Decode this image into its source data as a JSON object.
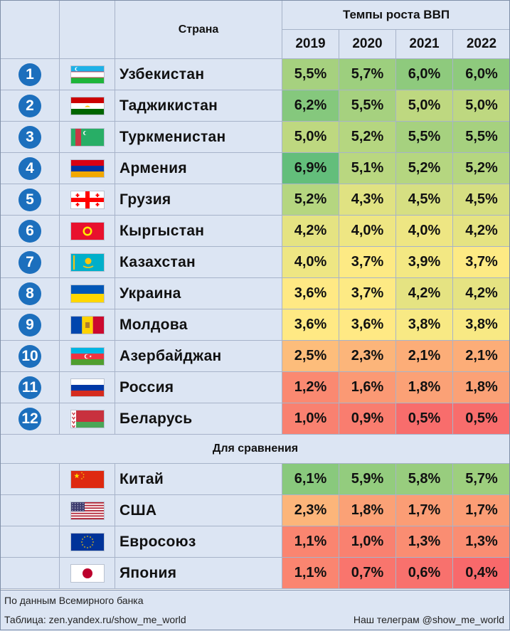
{
  "header": {
    "country_label": "Страна",
    "growth_label": "Темпы роста ВВП",
    "years": [
      "2019",
      "2020",
      "2021",
      "2022"
    ]
  },
  "rows": [
    {
      "rank": "1",
      "country": "Узбекистан",
      "flag": "uzbekistan-flag",
      "values": [
        "5,5%",
        "5,7%",
        "6,0%",
        "6,0%"
      ]
    },
    {
      "rank": "2",
      "country": "Таджикистан",
      "flag": "tajikistan-flag",
      "values": [
        "6,2%",
        "5,5%",
        "5,0%",
        "5,0%"
      ]
    },
    {
      "rank": "3",
      "country": "Туркменистан",
      "flag": "turkmenistan-flag",
      "values": [
        "5,0%",
        "5,2%",
        "5,5%",
        "5,5%"
      ]
    },
    {
      "rank": "4",
      "country": "Армения",
      "flag": "armenia-flag",
      "values": [
        "6,9%",
        "5,1%",
        "5,2%",
        "5,2%"
      ]
    },
    {
      "rank": "5",
      "country": "Грузия",
      "flag": "georgia-flag",
      "values": [
        "5,2%",
        "4,3%",
        "4,5%",
        "4,5%"
      ]
    },
    {
      "rank": "6",
      "country": "Кыргыстан",
      "flag": "kyrgyzstan-flag",
      "values": [
        "4,2%",
        "4,0%",
        "4,0%",
        "4,2%"
      ]
    },
    {
      "rank": "7",
      "country": "Казахстан",
      "flag": "kazakhstan-flag",
      "values": [
        "4,0%",
        "3,7%",
        "3,9%",
        "3,7%"
      ]
    },
    {
      "rank": "8",
      "country": "Украина",
      "flag": "ukraine-flag",
      "values": [
        "3,6%",
        "3,7%",
        "4,2%",
        "4,2%"
      ]
    },
    {
      "rank": "9",
      "country": "Молдова",
      "flag": "moldova-flag",
      "values": [
        "3,6%",
        "3,6%",
        "3,8%",
        "3,8%"
      ]
    },
    {
      "rank": "10",
      "country": "Азербайджан",
      "flag": "azerbaijan-flag",
      "values": [
        "2,5%",
        "2,3%",
        "2,1%",
        "2,1%"
      ]
    },
    {
      "rank": "11",
      "country": "Россия",
      "flag": "russia-flag",
      "values": [
        "1,2%",
        "1,6%",
        "1,8%",
        "1,8%"
      ]
    },
    {
      "rank": "12",
      "country": "Беларусь",
      "flag": "belarus-flag",
      "values": [
        "1,0%",
        "0,9%",
        "0,5%",
        "0,5%"
      ]
    }
  ],
  "comparison_label": "Для сравнения",
  "comparison_rows": [
    {
      "country": "Китай",
      "flag": "china-flag",
      "values": [
        "6,1%",
        "5,9%",
        "5,8%",
        "5,7%"
      ]
    },
    {
      "country": "США",
      "flag": "usa-flag",
      "values": [
        "2,3%",
        "1,8%",
        "1,7%",
        "1,7%"
      ]
    },
    {
      "country": "Евросоюз",
      "flag": "eu-flag",
      "values": [
        "1,1%",
        "1,0%",
        "1,3%",
        "1,3%"
      ]
    },
    {
      "country": "Япония",
      "flag": "japan-flag",
      "values": [
        "1,1%",
        "0,7%",
        "0,6%",
        "0,4%"
      ]
    }
  ],
  "footer": {
    "source": "По данным Всемирного банка",
    "table_credit": "Таблица: zen.yandex.ru/show_me_world",
    "telegram": "Наш телеграм @show_me_world"
  },
  "colors": {
    "header_bg": "#dce5f3",
    "rank_circle": "#1c6fbd",
    "scale_high": "#63be7b",
    "scale_mid": "#ffeb84",
    "scale_low": "#f8696b"
  }
}
